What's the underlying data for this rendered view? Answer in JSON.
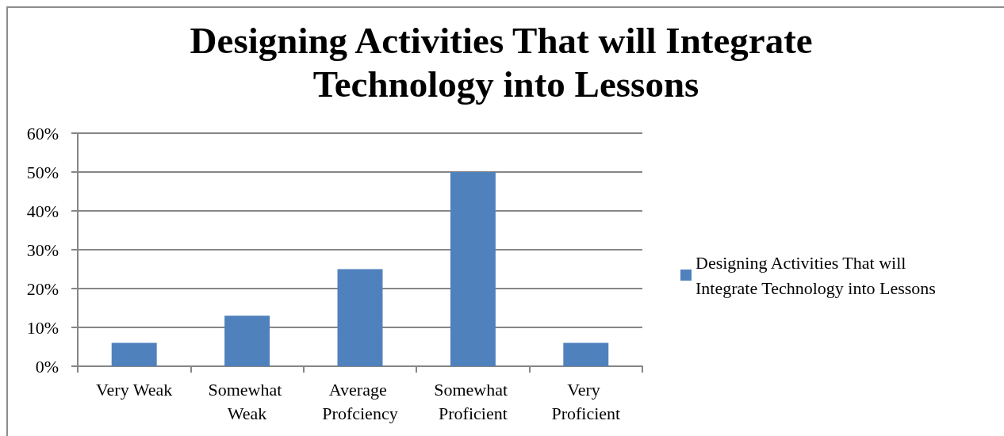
{
  "chart_data": {
    "type": "bar",
    "title": "Designing Activities That will Integrate Technology into Lessons",
    "categories": [
      "Very Weak",
      "Somewhat Weak",
      "Average Profciency",
      "Somewhat Proficient",
      "Very Proficient"
    ],
    "series": [
      {
        "name": "Designing Activities That will Integrate Technology into Lessons",
        "color": "#4f81bd",
        "values": [
          6,
          13,
          25,
          50,
          6
        ]
      }
    ],
    "ylim": [
      0,
      60
    ],
    "yticks": [
      {
        "value": 0,
        "label": "0%"
      },
      {
        "value": 10,
        "label": "10%"
      },
      {
        "value": 20,
        "label": "20%"
      },
      {
        "value": 30,
        "label": "30%"
      },
      {
        "value": 40,
        "label": "40%"
      },
      {
        "value": 50,
        "label": "50%"
      },
      {
        "value": 60,
        "label": "60%"
      }
    ],
    "grid": "y",
    "legend": "right"
  }
}
